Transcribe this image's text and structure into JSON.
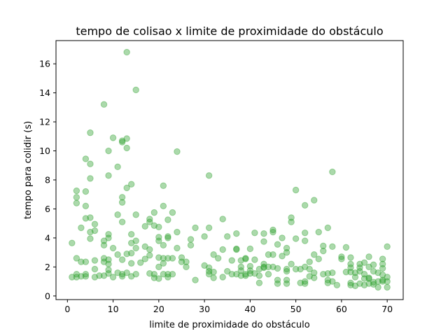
{
  "chart_data": {
    "type": "scatter",
    "title": "tempo de colisao x limite de proximidade do obstáculo",
    "xlabel": "limite de proximidade do obstáculo",
    "ylabel": "tempo para colidir (s)",
    "xlim": [
      -2.5,
      73.5
    ],
    "ylim": [
      -0.25,
      17.6
    ],
    "xticks": [
      0,
      10,
      20,
      30,
      40,
      50,
      60,
      70
    ],
    "yticks": [
      0,
      2,
      4,
      6,
      8,
      10,
      12,
      14,
      16
    ],
    "grid": false,
    "marker_color": "#2ca02c",
    "marker_alpha": 0.4,
    "series": [
      {
        "points": [
          [
            1,
            3.65
          ],
          [
            1,
            1.3
          ],
          [
            2,
            1.3
          ],
          [
            2,
            1.5
          ],
          [
            2,
            2.6
          ],
          [
            2,
            6.4
          ],
          [
            2,
            6.8
          ],
          [
            2,
            7.25
          ],
          [
            3,
            4.7
          ],
          [
            3,
            2.35
          ],
          [
            3,
            1.35
          ],
          [
            4,
            1.5
          ],
          [
            4,
            1.35
          ],
          [
            4,
            2.35
          ],
          [
            4,
            5.35
          ],
          [
            4,
            6.2
          ],
          [
            4,
            7.2
          ],
          [
            4,
            9.45
          ],
          [
            5,
            11.25
          ],
          [
            5,
            9.1
          ],
          [
            5,
            8.1
          ],
          [
            5,
            5.4
          ],
          [
            5,
            4.4
          ],
          [
            5,
            3.95
          ],
          [
            6,
            4.95
          ],
          [
            6,
            4.5
          ],
          [
            6,
            2.45
          ],
          [
            6,
            1.85
          ],
          [
            6,
            1.3
          ],
          [
            7,
            1.4
          ],
          [
            8,
            13.2
          ],
          [
            8,
            3.8
          ],
          [
            8,
            3.5
          ],
          [
            8,
            2.6
          ],
          [
            8,
            2.35
          ],
          [
            8,
            1.4
          ],
          [
            9,
            10.0
          ],
          [
            9,
            8.3
          ],
          [
            9,
            4.25
          ],
          [
            9,
            4.0
          ],
          [
            9,
            2.5
          ],
          [
            9,
            2.2
          ],
          [
            9,
            1.8
          ],
          [
            9,
            1.55
          ],
          [
            10,
            10.9
          ],
          [
            10,
            3.3
          ],
          [
            10,
            1.3
          ],
          [
            11,
            8.9
          ],
          [
            11,
            5.6
          ],
          [
            11,
            2.85
          ],
          [
            11,
            1.6
          ],
          [
            12,
            10.7
          ],
          [
            12,
            10.6
          ],
          [
            12,
            6.8
          ],
          [
            12,
            6.45
          ],
          [
            12,
            5.1
          ],
          [
            12,
            2.5
          ],
          [
            12,
            1.5
          ],
          [
            12,
            1.35
          ],
          [
            13,
            16.8
          ],
          [
            13,
            10.85
          ],
          [
            13,
            10.2
          ],
          [
            13,
            7.45
          ],
          [
            13,
            2.9
          ],
          [
            13,
            1.6
          ],
          [
            14,
            7.7
          ],
          [
            14,
            4.25
          ],
          [
            14,
            3.65
          ],
          [
            14,
            2.95
          ],
          [
            14,
            2.25
          ],
          [
            14,
            1.35
          ],
          [
            15,
            14.2
          ],
          [
            15,
            5.6
          ],
          [
            15,
            3.8
          ],
          [
            15,
            3.3
          ],
          [
            15,
            1.5
          ],
          [
            16,
            2.3
          ],
          [
            17,
            4.8
          ],
          [
            17,
            3.4
          ],
          [
            17,
            2.55
          ],
          [
            18,
            5.3
          ],
          [
            18,
            5.1
          ],
          [
            18,
            3.2
          ],
          [
            18,
            2.8
          ],
          [
            18,
            1.55
          ],
          [
            19,
            5.75
          ],
          [
            19,
            4.85
          ],
          [
            19,
            1.5
          ],
          [
            19,
            1.25
          ],
          [
            20,
            4.75
          ],
          [
            20,
            4.05
          ],
          [
            20,
            3.8
          ],
          [
            20,
            2.65
          ],
          [
            20,
            2.0
          ],
          [
            20,
            1.2
          ],
          [
            21,
            7.6
          ],
          [
            21,
            6.2
          ],
          [
            21,
            3.5
          ],
          [
            21,
            2.6
          ],
          [
            21,
            2.25
          ],
          [
            21,
            1.5
          ],
          [
            22,
            5.25
          ],
          [
            22,
            4.1
          ],
          [
            22,
            4.0
          ],
          [
            22,
            2.6
          ],
          [
            22,
            1.5
          ],
          [
            22,
            1.3
          ],
          [
            23,
            5.75
          ],
          [
            23,
            2.6
          ],
          [
            23,
            1.5
          ],
          [
            24,
            9.95
          ],
          [
            24,
            4.4
          ],
          [
            24,
            3.3
          ],
          [
            25,
            2.65
          ],
          [
            25,
            2.35
          ],
          [
            26,
            2.35
          ],
          [
            26,
            2.0
          ],
          [
            27,
            3.9
          ],
          [
            27,
            3.5
          ],
          [
            28,
            4.7
          ],
          [
            28,
            1.1
          ],
          [
            30,
            4.1
          ],
          [
            30,
            2.1
          ],
          [
            31,
            8.3
          ],
          [
            31,
            4.7
          ],
          [
            31,
            1.95
          ],
          [
            31,
            1.7
          ],
          [
            31,
            1.5
          ],
          [
            32,
            2.85
          ],
          [
            32,
            1.65
          ],
          [
            32,
            1.25
          ],
          [
            33,
            2.6
          ],
          [
            34,
            5.3
          ],
          [
            34,
            3.2
          ],
          [
            34,
            1.3
          ],
          [
            35,
            4.1
          ],
          [
            35,
            1.7
          ],
          [
            36,
            2.45
          ],
          [
            36,
            1.5
          ],
          [
            37,
            4.3
          ],
          [
            37,
            3.25
          ],
          [
            37,
            3.2
          ],
          [
            37,
            1.5
          ],
          [
            38,
            2.45
          ],
          [
            38,
            2.0
          ],
          [
            38,
            1.75
          ],
          [
            38,
            1.4
          ],
          [
            39,
            2.6
          ],
          [
            39,
            2.55
          ],
          [
            39,
            1.5
          ],
          [
            39,
            1.4
          ],
          [
            40,
            3.25
          ],
          [
            40,
            2.05
          ],
          [
            40,
            1.75
          ],
          [
            40,
            1.55
          ],
          [
            41,
            4.35
          ],
          [
            41,
            2.5
          ],
          [
            41,
            1.55
          ],
          [
            42,
            1.85
          ],
          [
            42,
            1.4
          ],
          [
            42,
            0.9
          ],
          [
            43,
            4.3
          ],
          [
            43,
            3.75
          ],
          [
            43,
            2.2
          ],
          [
            43,
            2.0
          ],
          [
            43,
            1.95
          ],
          [
            44,
            2.85
          ],
          [
            44,
            2.0
          ],
          [
            44,
            1.5
          ],
          [
            45,
            4.55
          ],
          [
            45,
            4.4
          ],
          [
            45,
            2.85
          ],
          [
            45,
            2.0
          ],
          [
            46,
            3.55
          ],
          [
            46,
            1.9
          ],
          [
            46,
            1.1
          ],
          [
            46,
            0.85
          ],
          [
            47,
            4.0
          ],
          [
            47,
            2.75
          ],
          [
            48,
            3.3
          ],
          [
            48,
            3.0
          ],
          [
            48,
            1.85
          ],
          [
            48,
            1.7
          ],
          [
            48,
            1.1
          ],
          [
            48,
            0.85
          ],
          [
            49,
            5.4
          ],
          [
            49,
            5.1
          ],
          [
            49,
            2.2
          ],
          [
            50,
            7.3
          ],
          [
            50,
            3.95
          ],
          [
            50,
            1.85
          ],
          [
            51,
            1.85
          ],
          [
            51,
            0.9
          ],
          [
            52,
            6.25
          ],
          [
            52,
            4.35
          ],
          [
            52,
            3.8
          ],
          [
            52,
            2.0
          ],
          [
            52,
            1.0
          ],
          [
            52,
            0.85
          ],
          [
            53,
            2.35
          ],
          [
            53,
            1.85
          ],
          [
            53,
            1.35
          ],
          [
            54,
            6.6
          ],
          [
            54,
            2.85
          ],
          [
            54,
            1.6
          ],
          [
            54,
            1.25
          ],
          [
            55,
            4.4
          ],
          [
            55,
            2.55
          ],
          [
            56,
            3.45
          ],
          [
            56,
            3.1
          ],
          [
            56,
            1.5
          ],
          [
            57,
            4.7
          ],
          [
            57,
            1.55
          ],
          [
            57,
            1.1
          ],
          [
            57,
            0.9
          ],
          [
            58,
            8.55
          ],
          [
            58,
            3.4
          ],
          [
            58,
            1.6
          ],
          [
            58,
            1.0
          ],
          [
            59,
            0.75
          ],
          [
            60,
            2.7
          ],
          [
            60,
            2.55
          ],
          [
            61,
            3.35
          ],
          [
            61,
            1.65
          ],
          [
            62,
            2.65
          ],
          [
            62,
            2.2
          ],
          [
            62,
            1.95
          ],
          [
            62,
            1.65
          ],
          [
            62,
            0.9
          ],
          [
            62,
            0.75
          ],
          [
            63,
            1.6
          ],
          [
            63,
            1.3
          ],
          [
            63,
            0.7
          ],
          [
            64,
            2.2
          ],
          [
            64,
            1.95
          ],
          [
            64,
            1.7
          ],
          [
            64,
            0.85
          ],
          [
            65,
            2.3
          ],
          [
            65,
            1.5
          ],
          [
            65,
            1.2
          ],
          [
            65,
            0.75
          ],
          [
            66,
            2.7
          ],
          [
            66,
            2.0
          ],
          [
            66,
            1.25
          ],
          [
            66,
            1.2
          ],
          [
            66,
            0.85
          ],
          [
            67,
            2.15
          ],
          [
            67,
            1.7
          ],
          [
            67,
            0.95
          ],
          [
            67,
            0.8
          ],
          [
            68,
            1.6
          ],
          [
            68,
            1.0
          ],
          [
            68,
            0.6
          ],
          [
            69,
            2.55
          ],
          [
            69,
            2.2
          ],
          [
            69,
            1.9
          ],
          [
            69,
            1.45
          ],
          [
            69,
            1.1
          ],
          [
            69,
            1.0
          ],
          [
            70,
            3.4
          ],
          [
            70,
            1.3
          ],
          [
            70,
            1.0
          ],
          [
            70,
            0.6
          ]
        ]
      }
    ]
  }
}
